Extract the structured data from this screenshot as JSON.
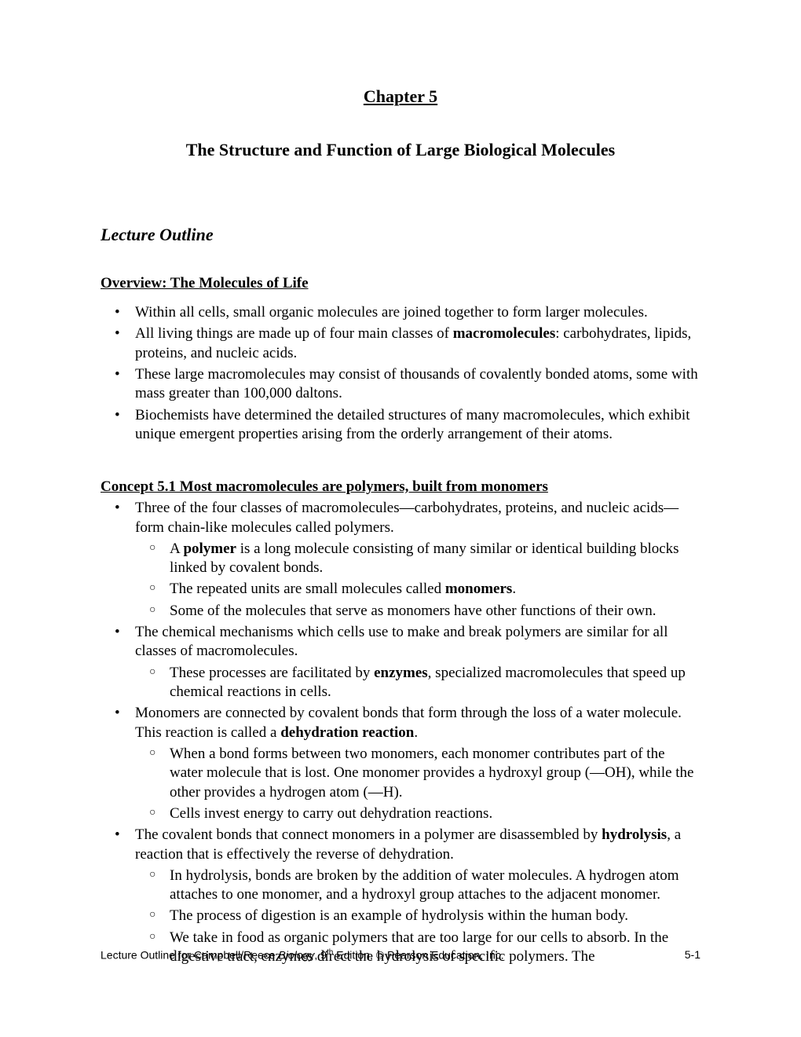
{
  "chapter_heading": "Chapter 5",
  "chapter_title": "The Structure and Function of Large Biological Molecules",
  "section_heading": "Lecture Outline",
  "overview": {
    "heading": "Overview: The Molecules of Life",
    "bullets": {
      "b1": "Within all cells, small organic molecules are joined together to form larger molecules.",
      "b2_pre": "All living things are made up of four main classes of ",
      "b2_bold": "macromolecules",
      "b2_post": ": carbohydrates, lipids, proteins, and nucleic acids.",
      "b3": "These large macromolecules may consist of thousands of covalently bonded atoms, some with mass greater than 100,000 daltons.",
      "b4": "Biochemists have determined the detailed structures of many macromolecules, which exhibit unique emergent properties arising from the orderly arrangement of their atoms."
    }
  },
  "concept": {
    "heading": "Concept 5.1 Most macromolecules are polymers, built from monomers",
    "b1": "Three of the four classes of macromolecules—carbohydrates, proteins, and nucleic acids—form chain-like molecules called polymers.",
    "b1_s1_pre": "A ",
    "b1_s1_bold": "polymer",
    "b1_s1_post": " is a long molecule consisting of many similar or identical building blocks linked by covalent bonds.",
    "b1_s2_pre": "The repeated units are small molecules called ",
    "b1_s2_bold": "monomers",
    "b1_s2_post": ".",
    "b1_s3": "Some of the molecules that serve as monomers have other functions of their own.",
    "b2": "The chemical mechanisms which cells use to make and break polymers are similar for all classes of macromolecules.",
    "b2_s1_pre": "These processes are facilitated by ",
    "b2_s1_bold": "enzymes",
    "b2_s1_post": ", specialized macromolecules that speed up chemical reactions in cells.",
    "b3_pre": "Monomers are connected by covalent bonds that form through the loss of a water molecule. This reaction is called a ",
    "b3_bold": "dehydration reaction",
    "b3_post": ".",
    "b3_s1": "When a bond forms between two monomers, each monomer contributes part of the water molecule that is lost. One monomer provides a hydroxyl group (—OH), while the other provides a hydrogen atom (—H).",
    "b3_s2": "Cells invest energy to carry out dehydration reactions.",
    "b4_pre": "The covalent bonds that connect monomers in a polymer are disassembled by ",
    "b4_bold": "hydrolysis",
    "b4_post": ", a reaction that is effectively the reverse of dehydration.",
    "b4_s1": "In hydrolysis, bonds are broken by the addition of water molecules. A hydrogen atom attaches to one monomer, and a hydroxyl group attaches to the adjacent monomer.",
    "b4_s2": "The process of digestion is an example of hydrolysis within the human body.",
    "b4_s3": "We take in food as organic polymers that are too large for our cells to absorb. In the digestive tract, enzymes direct the hydrolysis of specific polymers. The"
  },
  "footer": {
    "left_pre": "Lecture Outline for Campbell/Reece ",
    "left_italic": "Biology",
    "left_post": ", 9",
    "left_sup": "th",
    "left_end": " Edition, © Pearson Education, Inc.",
    "right": "5-1"
  }
}
